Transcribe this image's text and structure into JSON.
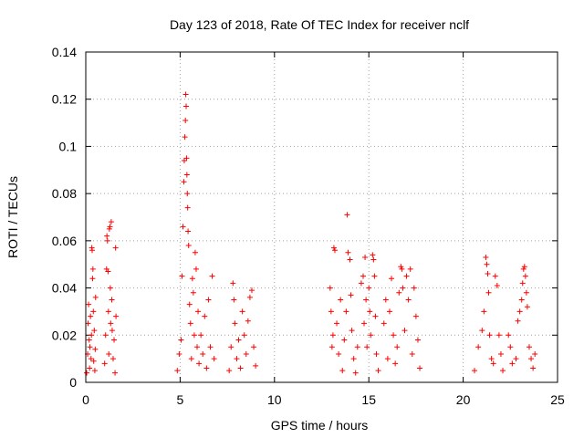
{
  "chart_data": {
    "type": "scatter",
    "title": "Day 123 of 2018, Rate Of TEC Index for receiver nclf",
    "xlabel": "GPS time / hours",
    "ylabel": "ROTI / TECUs",
    "xlim": [
      0,
      25
    ],
    "ylim": [
      0,
      0.14
    ],
    "x_ticks": [
      {
        "value": 0,
        "label": "0"
      },
      {
        "value": 5,
        "label": "5"
      },
      {
        "value": 10,
        "label": "10"
      },
      {
        "value": 15,
        "label": "15"
      },
      {
        "value": 20,
        "label": "20"
      },
      {
        "value": 25,
        "label": "25"
      }
    ],
    "y_ticks": [
      {
        "value": 0,
        "label": "0"
      },
      {
        "value": 0.02,
        "label": "0.02"
      },
      {
        "value": 0.04,
        "label": "0.04"
      },
      {
        "value": 0.06,
        "label": "0.06"
      },
      {
        "value": 0.08,
        "label": "0.08"
      },
      {
        "value": 0.1,
        "label": "0.1"
      },
      {
        "value": 0.12,
        "label": "0.12"
      },
      {
        "value": 0.14,
        "label": "0.14"
      }
    ],
    "grid": true,
    "marker": "plus",
    "color": "#ff0000",
    "series": [
      {
        "name": "ROTI",
        "points": [
          [
            0.05,
            0.004
          ],
          [
            0.1,
            0.012
          ],
          [
            0.12,
            0.025
          ],
          [
            0.15,
            0.033
          ],
          [
            0.18,
            0.018
          ],
          [
            0.2,
            0.006
          ],
          [
            0.22,
            0.015
          ],
          [
            0.25,
            0.028
          ],
          [
            0.28,
            0.01
          ],
          [
            0.3,
            0.02
          ],
          [
            0.32,
            0.057
          ],
          [
            0.34,
            0.056
          ],
          [
            0.36,
            0.044
          ],
          [
            0.38,
            0.048
          ],
          [
            0.4,
            0.03
          ],
          [
            0.42,
            0.009
          ],
          [
            0.45,
            0.022
          ],
          [
            0.48,
            0.005
          ],
          [
            0.5,
            0.014
          ],
          [
            0.52,
            0.036
          ],
          [
            1.0,
            0.008
          ],
          [
            1.05,
            0.02
          ],
          [
            1.1,
            0.048
          ],
          [
            1.12,
            0.062
          ],
          [
            1.15,
            0.06
          ],
          [
            1.18,
            0.047
          ],
          [
            1.2,
            0.03
          ],
          [
            1.22,
            0.012
          ],
          [
            1.25,
            0.065
          ],
          [
            1.28,
            0.066
          ],
          [
            1.3,
            0.04
          ],
          [
            1.32,
            0.025
          ],
          [
            1.35,
            0.068
          ],
          [
            1.38,
            0.035
          ],
          [
            1.4,
            0.022
          ],
          [
            1.45,
            0.01
          ],
          [
            1.5,
            0.018
          ],
          [
            1.55,
            0.004
          ],
          [
            1.58,
            0.057
          ],
          [
            1.6,
            0.028
          ],
          [
            4.85,
            0.005
          ],
          [
            4.95,
            0.012
          ],
          [
            5.05,
            0.018
          ],
          [
            5.1,
            0.045
          ],
          [
            5.15,
            0.066
          ],
          [
            5.2,
            0.085
          ],
          [
            5.22,
            0.094
          ],
          [
            5.25,
            0.104
          ],
          [
            5.28,
            0.111
          ],
          [
            5.3,
            0.122
          ],
          [
            5.32,
            0.117
          ],
          [
            5.34,
            0.095
          ],
          [
            5.36,
            0.088
          ],
          [
            5.38,
            0.08
          ],
          [
            5.4,
            0.074
          ],
          [
            5.42,
            0.064
          ],
          [
            5.45,
            0.058
          ],
          [
            5.5,
            0.033
          ],
          [
            5.55,
            0.025
          ],
          [
            5.6,
            0.01
          ],
          [
            5.65,
            0.044
          ],
          [
            5.7,
            0.038
          ],
          [
            5.75,
            0.02
          ],
          [
            5.8,
            0.055
          ],
          [
            5.85,
            0.048
          ],
          [
            5.9,
            0.015
          ],
          [
            5.95,
            0.03
          ],
          [
            6.0,
            0.008
          ],
          [
            6.1,
            0.02
          ],
          [
            6.2,
            0.012
          ],
          [
            6.3,
            0.028
          ],
          [
            6.4,
            0.006
          ],
          [
            6.5,
            0.035
          ],
          [
            6.6,
            0.015
          ],
          [
            6.7,
            0.045
          ],
          [
            6.8,
            0.01
          ],
          [
            7.6,
            0.005
          ],
          [
            7.7,
            0.015
          ],
          [
            7.8,
            0.042
          ],
          [
            7.85,
            0.035
          ],
          [
            7.9,
            0.025
          ],
          [
            8.0,
            0.01
          ],
          [
            8.1,
            0.018
          ],
          [
            8.2,
            0.006
          ],
          [
            8.3,
            0.03
          ],
          [
            8.4,
            0.02
          ],
          [
            8.5,
            0.012
          ],
          [
            8.6,
            0.026
          ],
          [
            8.7,
            0.036
          ],
          [
            8.8,
            0.039
          ],
          [
            8.9,
            0.015
          ],
          [
            9.0,
            0.007
          ],
          [
            12.95,
            0.04
          ],
          [
            13.0,
            0.03
          ],
          [
            13.05,
            0.015
          ],
          [
            13.1,
            0.02
          ],
          [
            13.15,
            0.057
          ],
          [
            13.2,
            0.056
          ],
          [
            13.3,
            0.025
          ],
          [
            13.4,
            0.012
          ],
          [
            13.5,
            0.035
          ],
          [
            13.6,
            0.005
          ],
          [
            13.7,
            0.018
          ],
          [
            13.8,
            0.03
          ],
          [
            13.85,
            0.071
          ],
          [
            13.9,
            0.055
          ],
          [
            14.0,
            0.052
          ],
          [
            14.05,
            0.037
          ],
          [
            14.1,
            0.022
          ],
          [
            14.2,
            0.01
          ],
          [
            14.3,
            0.004
          ],
          [
            14.4,
            0.015
          ],
          [
            14.6,
            0.042
          ],
          [
            14.7,
            0.045
          ],
          [
            14.75,
            0.025
          ],
          [
            14.8,
            0.053
          ],
          [
            14.85,
            0.035
          ],
          [
            14.9,
            0.015
          ],
          [
            15.0,
            0.04
          ],
          [
            15.05,
            0.03
          ],
          [
            15.1,
            0.02
          ],
          [
            15.2,
            0.054
          ],
          [
            15.25,
            0.052
          ],
          [
            15.3,
            0.045
          ],
          [
            15.35,
            0.028
          ],
          [
            15.4,
            0.012
          ],
          [
            15.5,
            0.005
          ],
          [
            15.8,
            0.025
          ],
          [
            15.9,
            0.035
          ],
          [
            16.0,
            0.01
          ],
          [
            16.1,
            0.03
          ],
          [
            16.2,
            0.044
          ],
          [
            16.3,
            0.02
          ],
          [
            16.4,
            0.008
          ],
          [
            16.5,
            0.015
          ],
          [
            16.6,
            0.038
          ],
          [
            16.7,
            0.049
          ],
          [
            16.75,
            0.048
          ],
          [
            16.8,
            0.04
          ],
          [
            16.9,
            0.022
          ],
          [
            17.0,
            0.045
          ],
          [
            17.1,
            0.035
          ],
          [
            17.2,
            0.048
          ],
          [
            17.3,
            0.012
          ],
          [
            17.4,
            0.04
          ],
          [
            17.5,
            0.028
          ],
          [
            17.6,
            0.018
          ],
          [
            17.7,
            0.006
          ],
          [
            20.6,
            0.005
          ],
          [
            20.8,
            0.015
          ],
          [
            21.0,
            0.022
          ],
          [
            21.1,
            0.03
          ],
          [
            21.2,
            0.053
          ],
          [
            21.25,
            0.05
          ],
          [
            21.3,
            0.046
          ],
          [
            21.35,
            0.038
          ],
          [
            21.4,
            0.02
          ],
          [
            21.5,
            0.01
          ],
          [
            21.6,
            0.008
          ],
          [
            21.7,
            0.045
          ],
          [
            21.8,
            0.041
          ],
          [
            21.9,
            0.02
          ],
          [
            22.0,
            0.012
          ],
          [
            22.1,
            0.005
          ],
          [
            22.4,
            0.02
          ],
          [
            22.5,
            0.015
          ],
          [
            22.6,
            0.008
          ],
          [
            22.8,
            0.01
          ],
          [
            22.9,
            0.026
          ],
          [
            23.0,
            0.03
          ],
          [
            23.1,
            0.035
          ],
          [
            23.15,
            0.042
          ],
          [
            23.2,
            0.048
          ],
          [
            23.25,
            0.049
          ],
          [
            23.3,
            0.045
          ],
          [
            23.35,
            0.038
          ],
          [
            23.4,
            0.032
          ],
          [
            23.5,
            0.015
          ],
          [
            23.6,
            0.01
          ],
          [
            23.7,
            0.006
          ],
          [
            23.8,
            0.012
          ]
        ]
      }
    ]
  }
}
